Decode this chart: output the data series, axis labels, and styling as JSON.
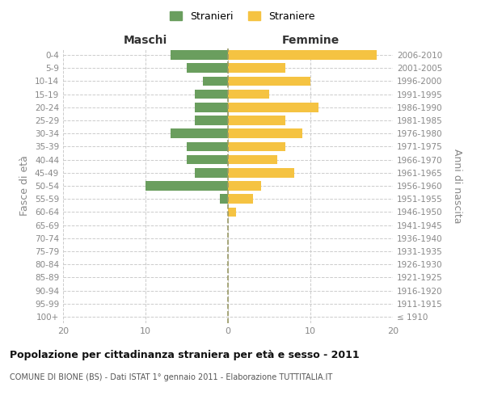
{
  "age_groups": [
    "100+",
    "95-99",
    "90-94",
    "85-89",
    "80-84",
    "75-79",
    "70-74",
    "65-69",
    "60-64",
    "55-59",
    "50-54",
    "45-49",
    "40-44",
    "35-39",
    "30-34",
    "25-29",
    "20-24",
    "15-19",
    "10-14",
    "5-9",
    "0-4"
  ],
  "birth_years": [
    "≤ 1910",
    "1911-1915",
    "1916-1920",
    "1921-1925",
    "1926-1930",
    "1931-1935",
    "1936-1940",
    "1941-1945",
    "1946-1950",
    "1951-1955",
    "1956-1960",
    "1961-1965",
    "1966-1970",
    "1971-1975",
    "1976-1980",
    "1981-1985",
    "1986-1990",
    "1991-1995",
    "1996-2000",
    "2001-2005",
    "2006-2010"
  ],
  "maschi": [
    0,
    0,
    0,
    0,
    0,
    0,
    0,
    0,
    0,
    1,
    10,
    4,
    5,
    5,
    7,
    4,
    4,
    4,
    3,
    5,
    7
  ],
  "femmine": [
    0,
    0,
    0,
    0,
    0,
    0,
    0,
    0,
    1,
    3,
    4,
    8,
    6,
    7,
    9,
    7,
    11,
    5,
    10,
    7,
    18
  ],
  "maschi_color": "#6a9e5e",
  "femmine_color": "#f5c342",
  "title": "Popolazione per cittadinanza straniera per età e sesso - 2011",
  "subtitle": "COMUNE DI BIONE (BS) - Dati ISTAT 1° gennaio 2011 - Elaborazione TUTTITALIA.IT",
  "ylabel_left": "Fasce di età",
  "ylabel_right": "Anni di nascita",
  "xlabel_left": "Maschi",
  "xlabel_right": "Femmine",
  "legend_stranieri": "Stranieri",
  "legend_straniere": "Straniere",
  "xlim": 20,
  "background_color": "#ffffff",
  "grid_color": "#cccccc",
  "tick_color": "#888888",
  "center_line_color": "#999966",
  "title_color": "#111111",
  "subtitle_color": "#555555",
  "header_color": "#333333"
}
